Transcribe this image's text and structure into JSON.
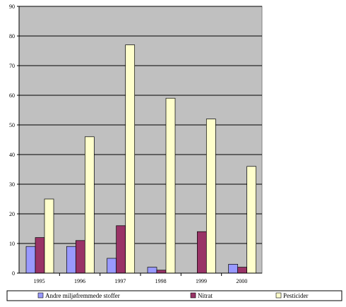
{
  "chart_data": {
    "type": "bar",
    "title": "",
    "xlabel": "",
    "ylabel": "",
    "categories": [
      "1995",
      "1996",
      "1997",
      "1998",
      "1999",
      "2000"
    ],
    "ylim": [
      0,
      90
    ],
    "yticks": [
      "0",
      "10",
      "20",
      "30",
      "40",
      "50",
      "60",
      "70",
      "80",
      "90"
    ],
    "grid": true,
    "plot_background": "#c0c0c0",
    "legend_position": "bottom",
    "series": [
      {
        "name": "Andre miljøfremmede stoffer",
        "color": "#9999ff",
        "values": [
          9,
          9,
          5,
          2,
          0,
          3
        ]
      },
      {
        "name": "Nitrat",
        "color": "#993366",
        "values": [
          12,
          11,
          16,
          1,
          14,
          2
        ]
      },
      {
        "name": "Pesticider",
        "color": "#ffffcc",
        "values": [
          25,
          46,
          77,
          59,
          52,
          36
        ]
      }
    ]
  }
}
